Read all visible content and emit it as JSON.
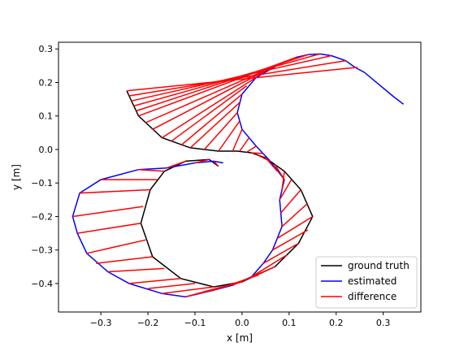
{
  "chart_data": {
    "type": "line",
    "xlabel": "x [m]",
    "ylabel": "y [m]",
    "xlim": [
      -0.39,
      0.38
    ],
    "ylim": [
      -0.485,
      0.32
    ],
    "xticks": [
      -0.3,
      -0.2,
      -0.1,
      0.0,
      0.1,
      0.2,
      0.3
    ],
    "xtick_labels": [
      "−0.3",
      "−0.2",
      "−0.1",
      "0.0",
      "0.1",
      "0.2",
      "0.3"
    ],
    "yticks": [
      -0.4,
      -0.3,
      -0.2,
      -0.1,
      0.0,
      0.1,
      0.2,
      0.3
    ],
    "ytick_labels": [
      "−0.4",
      "−0.3",
      "−0.2",
      "−0.1",
      "0.0",
      "0.1",
      "0.2",
      "0.3"
    ],
    "grid": false,
    "legend": {
      "placement": "lower-right",
      "entries": [
        {
          "label": "ground truth",
          "color": "#000000"
        },
        {
          "label": "estimated",
          "color": "#0000ff"
        },
        {
          "label": "difference",
          "color": "#ff0000"
        }
      ]
    },
    "series": [
      {
        "name": "ground truth",
        "color": "#000000",
        "points": [
          [
            -0.245,
            0.175
          ],
          [
            -0.22,
            0.1
          ],
          [
            -0.17,
            0.035
          ],
          [
            -0.11,
            0.005
          ],
          [
            -0.05,
            -0.005
          ],
          [
            -0.01,
            -0.005
          ],
          [
            0.02,
            -0.01
          ],
          [
            0.05,
            -0.025
          ],
          [
            0.09,
            -0.065
          ],
          [
            0.125,
            -0.12
          ],
          [
            0.15,
            -0.2
          ],
          [
            0.12,
            -0.28
          ],
          [
            0.07,
            -0.35
          ],
          [
            0.0,
            -0.395
          ],
          [
            -0.06,
            -0.41
          ],
          [
            -0.13,
            -0.385
          ],
          [
            -0.19,
            -0.32
          ],
          [
            -0.215,
            -0.22
          ],
          [
            -0.195,
            -0.12
          ],
          [
            -0.165,
            -0.065
          ],
          [
            -0.12,
            -0.035
          ],
          [
            -0.07,
            -0.03
          ],
          [
            -0.05,
            -0.05
          ]
        ]
      },
      {
        "name": "estimated",
        "color": "#0000ff",
        "points": [
          [
            0.343,
            0.135
          ],
          [
            0.32,
            0.16
          ],
          [
            0.29,
            0.195
          ],
          [
            0.26,
            0.23
          ],
          [
            0.24,
            0.245
          ],
          [
            0.22,
            0.265
          ],
          [
            0.19,
            0.28
          ],
          [
            0.165,
            0.285
          ],
          [
            0.14,
            0.283
          ],
          [
            0.115,
            0.275
          ],
          [
            0.08,
            0.255
          ],
          [
            0.03,
            0.215
          ],
          [
            0.0,
            0.165
          ],
          [
            -0.01,
            0.11
          ],
          [
            0.0,
            0.06
          ],
          [
            0.03,
            0.01
          ],
          [
            0.06,
            -0.035
          ],
          [
            0.09,
            -0.09
          ],
          [
            0.08,
            -0.15
          ],
          [
            0.085,
            -0.23
          ],
          [
            0.065,
            -0.3
          ],
          [
            0.045,
            -0.34
          ],
          [
            0.02,
            -0.38
          ],
          [
            -0.02,
            -0.405
          ],
          [
            -0.06,
            -0.42
          ],
          [
            -0.12,
            -0.44
          ],
          [
            -0.17,
            -0.43
          ],
          [
            -0.24,
            -0.4
          ],
          [
            -0.285,
            -0.365
          ],
          [
            -0.33,
            -0.31
          ],
          [
            -0.35,
            -0.25
          ],
          [
            -0.36,
            -0.2
          ],
          [
            -0.345,
            -0.13
          ],
          [
            -0.3,
            -0.09
          ],
          [
            -0.22,
            -0.06
          ],
          [
            -0.16,
            -0.055
          ],
          [
            -0.1,
            -0.04
          ],
          [
            -0.06,
            -0.035
          ],
          [
            -0.04,
            -0.04
          ]
        ]
      }
    ],
    "difference_segments": [
      {
        "from_est": [
          0.245,
          0.245
        ],
        "to_gt": [
          -0.245,
          0.175
        ]
      },
      {
        "from_est": [
          0.22,
          0.265
        ],
        "to_gt": [
          -0.24,
          0.16
        ]
      },
      {
        "from_est": [
          0.19,
          0.28
        ],
        "to_gt": [
          -0.235,
          0.145
        ]
      },
      {
        "from_est": [
          0.165,
          0.285
        ],
        "to_gt": [
          -0.23,
          0.13
        ]
      },
      {
        "from_est": [
          0.14,
          0.283
        ],
        "to_gt": [
          -0.225,
          0.115
        ]
      },
      {
        "from_est": [
          0.115,
          0.275
        ],
        "to_gt": [
          -0.22,
          0.1
        ]
      },
      {
        "from_est": [
          0.08,
          0.255
        ],
        "to_gt": [
          -0.205,
          0.08
        ]
      },
      {
        "from_est": [
          0.05,
          0.235
        ],
        "to_gt": [
          -0.19,
          0.06
        ]
      },
      {
        "from_est": [
          0.03,
          0.215
        ],
        "to_gt": [
          -0.17,
          0.035
        ]
      },
      {
        "from_est": [
          0.01,
          0.19
        ],
        "to_gt": [
          -0.15,
          0.025
        ]
      },
      {
        "from_est": [
          0.0,
          0.165
        ],
        "to_gt": [
          -0.13,
          0.012
        ]
      },
      {
        "from_est": [
          -0.005,
          0.14
        ],
        "to_gt": [
          -0.11,
          0.005
        ]
      },
      {
        "from_est": [
          -0.01,
          0.11
        ],
        "to_gt": [
          -0.08,
          0.0
        ]
      },
      {
        "from_est": [
          -0.005,
          0.085
        ],
        "to_gt": [
          -0.05,
          -0.005
        ]
      },
      {
        "from_est": [
          0.0,
          0.06
        ],
        "to_gt": [
          -0.02,
          -0.005
        ]
      },
      {
        "from_est": [
          0.015,
          0.035
        ],
        "to_gt": [
          -0.005,
          -0.005
        ]
      },
      {
        "from_est": [
          0.03,
          0.01
        ],
        "to_gt": [
          0.01,
          -0.008
        ]
      },
      {
        "from_est": [
          0.045,
          -0.012
        ],
        "to_gt": [
          0.02,
          -0.01
        ]
      },
      {
        "from_est": [
          0.06,
          -0.035
        ],
        "to_gt": [
          0.035,
          -0.018
        ]
      },
      {
        "from_est": [
          0.075,
          -0.065
        ],
        "to_gt": [
          0.05,
          -0.025
        ]
      },
      {
        "from_est": [
          0.09,
          -0.09
        ],
        "to_gt": [
          0.07,
          -0.045
        ]
      },
      {
        "from_est": [
          0.085,
          -0.12
        ],
        "to_gt": [
          0.09,
          -0.065
        ]
      },
      {
        "from_est": [
          0.08,
          -0.15
        ],
        "to_gt": [
          0.105,
          -0.09
        ]
      },
      {
        "from_est": [
          0.082,
          -0.19
        ],
        "to_gt": [
          0.125,
          -0.12
        ]
      },
      {
        "from_est": [
          0.085,
          -0.23
        ],
        "to_gt": [
          0.14,
          -0.16
        ]
      },
      {
        "from_est": [
          0.075,
          -0.265
        ],
        "to_gt": [
          0.15,
          -0.2
        ]
      },
      {
        "from_est": [
          0.065,
          -0.3
        ],
        "to_gt": [
          0.14,
          -0.24
        ]
      },
      {
        "from_est": [
          0.045,
          -0.34
        ],
        "to_gt": [
          0.12,
          -0.28
        ]
      },
      {
        "from_est": [
          0.02,
          -0.38
        ],
        "to_gt": [
          0.095,
          -0.315
        ]
      },
      {
        "from_est": [
          -0.02,
          -0.405
        ],
        "to_gt": [
          0.07,
          -0.35
        ]
      },
      {
        "from_est": [
          -0.06,
          -0.42
        ],
        "to_gt": [
          0.035,
          -0.375
        ]
      },
      {
        "from_est": [
          -0.09,
          -0.43
        ],
        "to_gt": [
          0.0,
          -0.395
        ]
      },
      {
        "from_est": [
          -0.12,
          -0.44
        ],
        "to_gt": [
          -0.03,
          -0.405
        ]
      },
      {
        "from_est": [
          -0.17,
          -0.43
        ],
        "to_gt": [
          -0.06,
          -0.41
        ]
      },
      {
        "from_est": [
          -0.2,
          -0.415
        ],
        "to_gt": [
          -0.1,
          -0.4
        ]
      },
      {
        "from_est": [
          -0.24,
          -0.4
        ],
        "to_gt": [
          -0.13,
          -0.385
        ]
      },
      {
        "from_est": [
          -0.285,
          -0.365
        ],
        "to_gt": [
          -0.165,
          -0.355
        ]
      },
      {
        "from_est": [
          -0.31,
          -0.34
        ],
        "to_gt": [
          -0.19,
          -0.32
        ]
      },
      {
        "from_est": [
          -0.33,
          -0.31
        ],
        "to_gt": [
          -0.205,
          -0.27
        ]
      },
      {
        "from_est": [
          -0.35,
          -0.25
        ],
        "to_gt": [
          -0.215,
          -0.22
        ]
      },
      {
        "from_est": [
          -0.36,
          -0.2
        ],
        "to_gt": [
          -0.21,
          -0.17
        ]
      },
      {
        "from_est": [
          -0.345,
          -0.13
        ],
        "to_gt": [
          -0.195,
          -0.12
        ]
      },
      {
        "from_est": [
          -0.3,
          -0.09
        ],
        "to_gt": [
          -0.18,
          -0.09
        ]
      },
      {
        "from_est": [
          -0.22,
          -0.06
        ],
        "to_gt": [
          -0.165,
          -0.065
        ]
      },
      {
        "from_est": [
          -0.16,
          -0.055
        ],
        "to_gt": [
          -0.12,
          -0.035
        ]
      },
      {
        "from_est": [
          -0.1,
          -0.04
        ],
        "to_gt": [
          -0.07,
          -0.03
        ]
      },
      {
        "from_est": [
          -0.06,
          -0.035
        ],
        "to_gt": [
          -0.05,
          -0.05
        ]
      }
    ]
  }
}
